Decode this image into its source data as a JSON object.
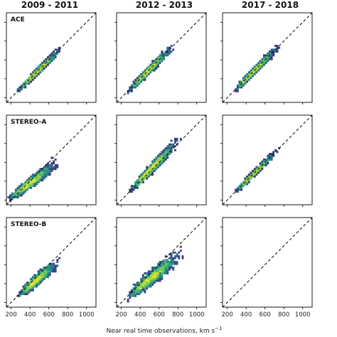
{
  "chart_data": {
    "type": "heatmap",
    "column_titles": [
      "2009 - 2011",
      "2012 - 2013",
      "2017 - 2018"
    ],
    "row_labels": [
      "ACE",
      "STEREO-A",
      "STEREO-B"
    ],
    "xlabel": "Near real time observations, km s",
    "xlabel_sup": "−1",
    "xticks": [
      200,
      400,
      600,
      800,
      1000
    ],
    "xlim": [
      150,
      1100
    ],
    "ylim": [
      150,
      1100
    ],
    "identity_line": true,
    "colormap": [
      "#440154",
      "#3b528b",
      "#21918c",
      "#5ec962",
      "#fde725"
    ],
    "panels": [
      {
        "row": 0,
        "col": 0,
        "row_label": "ACE",
        "x_range": [
          250,
          760
        ],
        "spread": 35,
        "slope": 1.0,
        "offset": 0
      },
      {
        "row": 0,
        "col": 1,
        "x_range": [
          260,
          780
        ],
        "spread": 45,
        "slope": 1.0,
        "offset": 0
      },
      {
        "row": 0,
        "col": 2,
        "x_range": [
          260,
          780
        ],
        "spread": 40,
        "slope": 1.0,
        "offset": 0
      },
      {
        "row": 1,
        "col": 0,
        "row_label": "STEREO-A",
        "x_range": [
          160,
          730
        ],
        "spread": 60,
        "slope": 0.75,
        "offset": 80
      },
      {
        "row": 1,
        "col": 1,
        "x_range": [
          280,
          860
        ],
        "spread": 55,
        "slope": 1.05,
        "offset": -10
      },
      {
        "row": 1,
        "col": 2,
        "x_range": [
          270,
          760
        ],
        "spread": 30,
        "slope": 1.0,
        "offset": 0
      },
      {
        "row": 2,
        "col": 0,
        "row_label": "STEREO-B",
        "x_range": [
          270,
          720
        ],
        "spread": 70,
        "slope": 0.85,
        "offset": 40
      },
      {
        "row": 2,
        "col": 1,
        "x_range": [
          250,
          870
        ],
        "spread": 85,
        "slope": 0.8,
        "offset": 50
      },
      {
        "row": 2,
        "col": 2,
        "empty": true
      }
    ]
  }
}
